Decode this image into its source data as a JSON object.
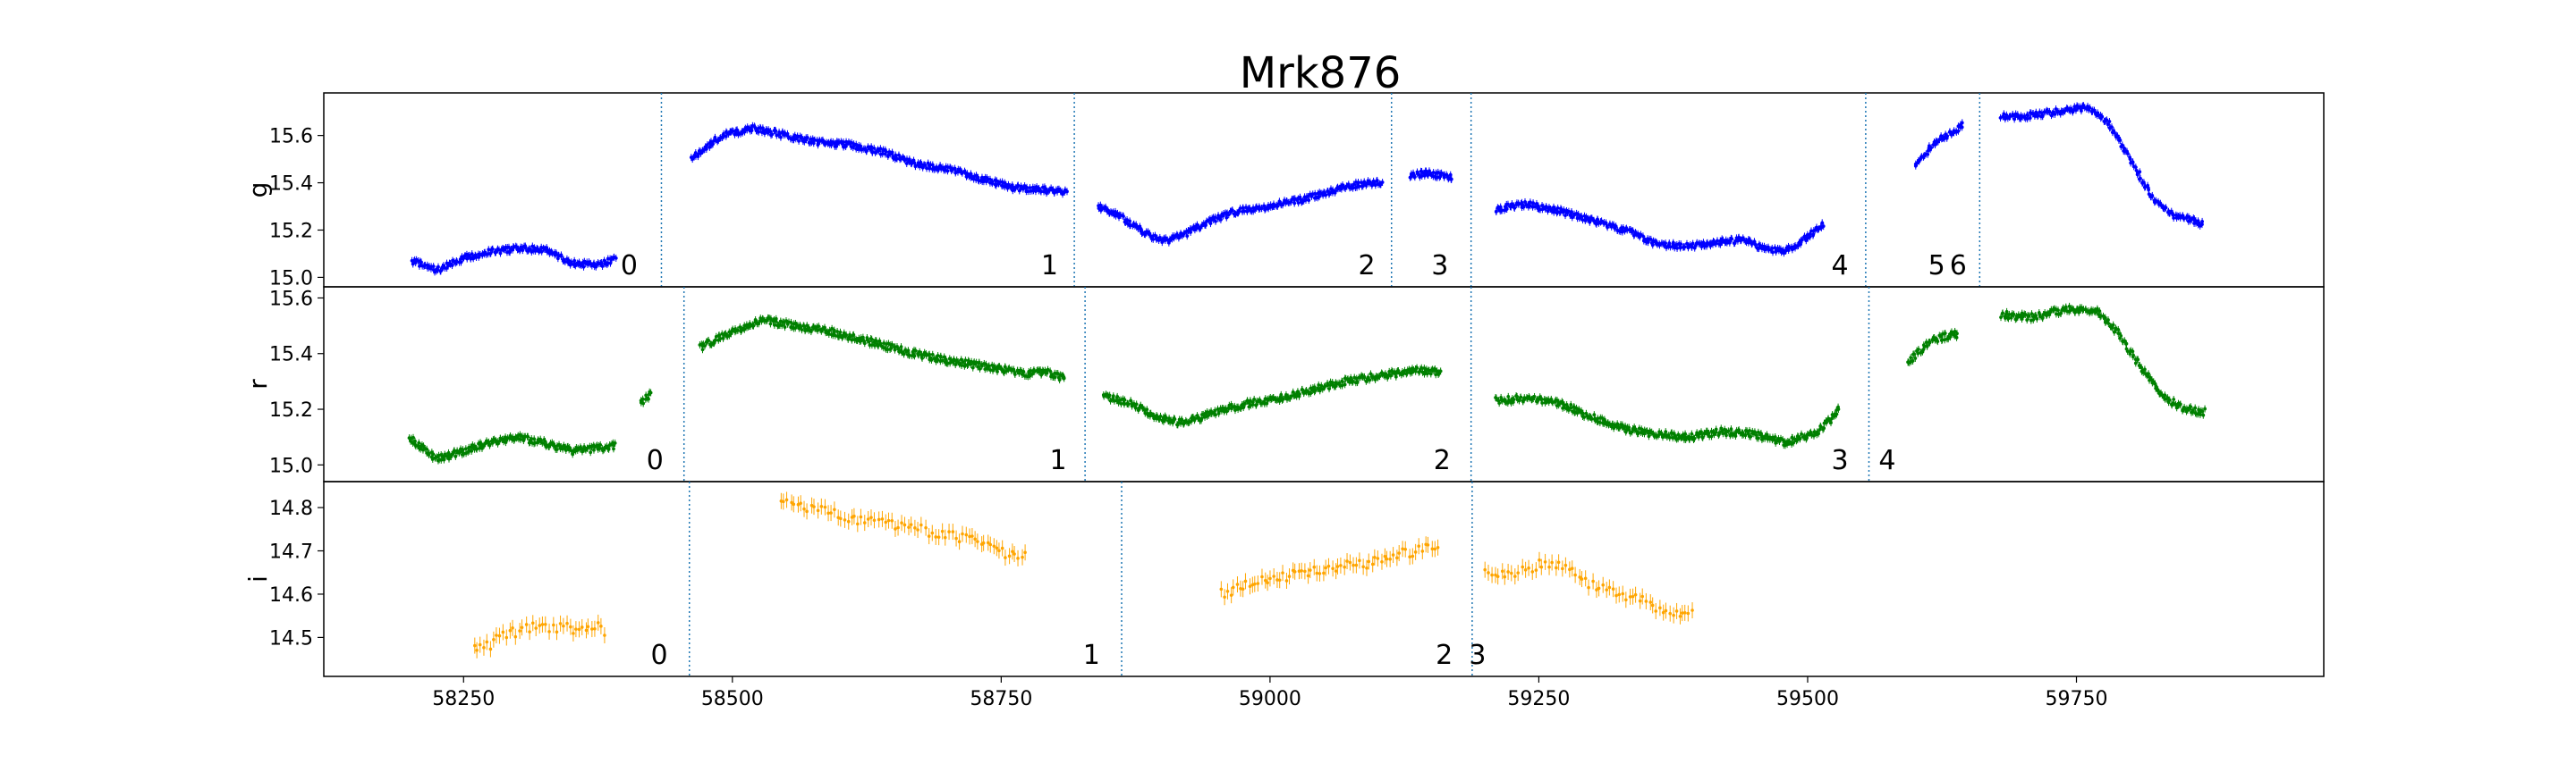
{
  "chart_data": {
    "type": "scatter",
    "title": "Mrk876",
    "xlim": [
      58120,
      59980
    ],
    "x_ticks": [
      58250,
      58500,
      58750,
      59000,
      59250,
      59500,
      59750
    ],
    "panels": [
      {
        "ylabel": "g",
        "color": "#0000ff",
        "ylim": [
          14.96,
          15.78
        ],
        "y_ticks": [
          "15.0",
          "15.2",
          "15.4",
          "15.6"
        ],
        "boundaries": [
          58434,
          58818,
          59113,
          59187,
          59554,
          59660
        ],
        "segment_labels": [
          {
            "label": "0",
            "x": 58404
          },
          {
            "label": "1",
            "x": 58795
          },
          {
            "label": "2",
            "x": 59090
          },
          {
            "label": "3",
            "x": 59158
          },
          {
            "label": "4",
            "x": 59530
          },
          {
            "label": "5",
            "x": 59620
          },
          {
            "label": "6",
            "x": 59640
          }
        ],
        "series": [
          {
            "x": [
              58202,
              58225,
              58250,
              58275,
              58300,
              58325,
              58350,
              58375,
              58392
            ],
            "y": [
              15.07,
              15.03,
              15.08,
              15.11,
              15.12,
              15.12,
              15.06,
              15.05,
              15.08
            ]
          },
          {
            "x": [
              58462,
              58490,
              58520,
              58550,
              58580,
              58610,
              58640,
              58670,
              58700,
              58730,
              58760,
              58790,
              58812
            ],
            "y": [
              15.5,
              15.6,
              15.63,
              15.6,
              15.57,
              15.56,
              15.53,
              15.48,
              15.46,
              15.42,
              15.38,
              15.37,
              15.36
            ]
          },
          {
            "x": [
              58840,
              58860,
              58880,
              58900,
              58920,
              58940,
              58970,
              59000,
              59030,
              59060,
              59090,
              59105
            ],
            "y": [
              15.3,
              15.26,
              15.2,
              15.15,
              15.18,
              15.23,
              15.28,
              15.3,
              15.33,
              15.37,
              15.4,
              15.4
            ]
          },
          {
            "x": [
              59130,
              59145,
              59160,
              59170
            ],
            "y": [
              15.43,
              15.44,
              15.43,
              15.42
            ]
          },
          {
            "x": [
              59210,
              59240,
              59270,
              59300,
              59330,
              59360,
              59390,
              59420,
              59440,
              59460,
              59480,
              59500,
              59515
            ],
            "y": [
              15.29,
              15.31,
              15.28,
              15.24,
              15.2,
              15.14,
              15.13,
              15.15,
              15.16,
              15.12,
              15.11,
              15.17,
              15.23
            ]
          },
          {
            "x": [
              59600,
              59620,
              59635,
              59645
            ],
            "y": [
              15.47,
              15.58,
              15.61,
              15.65
            ]
          },
          {
            "x": [
              59680,
              59700,
              59730,
              59760,
              59780,
              59800,
              59820,
              59840,
              59860,
              59868
            ],
            "y": [
              15.68,
              15.68,
              15.7,
              15.72,
              15.65,
              15.5,
              15.34,
              15.26,
              15.24,
              15.22
            ]
          }
        ]
      },
      {
        "ylabel": "r",
        "color": "#008000",
        "ylim": [
          14.94,
          15.64
        ],
        "y_ticks": [
          "15.0",
          "15.2",
          "15.4",
          "15.6"
        ],
        "boundaries": [
          58455,
          58828,
          59187,
          59557
        ],
        "segment_labels": [
          {
            "label": "0",
            "x": 58428
          },
          {
            "label": "1",
            "x": 58803
          },
          {
            "label": "2",
            "x": 59160
          },
          {
            "label": "3",
            "x": 59530
          },
          {
            "label": "4",
            "x": 59574
          }
        ],
        "series": [
          {
            "x": [
              58200,
              58225,
              58250,
              58275,
              58300,
              58325,
              58350,
              58375,
              58392
            ],
            "y": [
              15.1,
              15.02,
              15.05,
              15.08,
              15.1,
              15.08,
              15.05,
              15.06,
              15.07
            ]
          },
          {
            "x": [
              58415,
              58425
            ],
            "y": [
              15.22,
              15.26
            ]
          },
          {
            "x": [
              58470,
              58500,
              58530,
              58560,
              58590,
              58620,
              58650,
              58680,
              58710,
              58740,
              58770,
              58795,
              58810
            ],
            "y": [
              15.42,
              15.48,
              15.52,
              15.5,
              15.48,
              15.45,
              15.42,
              15.39,
              15.37,
              15.35,
              15.33,
              15.33,
              15.31
            ]
          },
          {
            "x": [
              58845,
              58870,
              58895,
              58920,
              58950,
              58980,
              59010,
              59040,
              59070,
              59100,
              59120,
              59140,
              59160
            ],
            "y": [
              15.25,
              15.22,
              15.17,
              15.15,
              15.19,
              15.22,
              15.24,
              15.27,
              15.3,
              15.32,
              15.33,
              15.34,
              15.33
            ]
          },
          {
            "x": [
              59210,
              59240,
              59270,
              59300,
              59330,
              59360,
              59390,
              59420,
              59450,
              59480,
              59510,
              59530
            ],
            "y": [
              15.23,
              15.24,
              15.22,
              15.17,
              15.13,
              15.11,
              15.1,
              15.12,
              15.11,
              15.08,
              15.12,
              15.2
            ]
          },
          {
            "x": [
              59593,
              59610,
              59625,
              59640
            ],
            "y": [
              15.37,
              15.43,
              15.46,
              15.47
            ]
          },
          {
            "x": [
              59680,
              59710,
              59740,
              59770,
              59790,
              59810,
              59830,
              59850,
              59870
            ],
            "y": [
              15.54,
              15.53,
              15.56,
              15.55,
              15.47,
              15.35,
              15.25,
              15.2,
              15.19
            ]
          }
        ]
      },
      {
        "ylabel": "i",
        "color": "#ffa500",
        "ylim": [
          14.41,
          14.86
        ],
        "y_ticks": [
          "14.5",
          "14.6",
          "14.7",
          "14.8"
        ],
        "boundaries": [
          58460,
          58862,
          59188
        ],
        "segment_labels": [
          {
            "label": "0",
            "x": 58432
          },
          {
            "label": "1",
            "x": 58834
          },
          {
            "label": "2",
            "x": 59162
          },
          {
            "label": "3",
            "x": 59193
          }
        ],
        "series": [
          {
            "x": [
              58260,
              58272,
              58284,
              58296,
              58308,
              58320,
              58333,
              58346,
              58358,
              58372,
              58385
            ],
            "y": [
              14.47,
              14.48,
              14.5,
              14.51,
              14.52,
              14.53,
              14.52,
              14.53,
              14.51,
              14.53,
              14.5
            ]
          },
          {
            "x": [
              58545,
              58570,
              58595,
              58620,
              58645,
              58670,
              58695,
              58720,
              58740,
              58760,
              58775
            ],
            "y": [
              14.81,
              14.8,
              14.79,
              14.77,
              14.76,
              14.75,
              14.74,
              14.73,
              14.71,
              14.69,
              14.69
            ]
          },
          {
            "x": [
              58955,
              58975,
              58995,
              59015,
              59035,
              59055,
              59075,
              59095,
              59115,
              59135,
              59160
            ],
            "y": [
              14.6,
              14.62,
              14.63,
              14.64,
              14.65,
              14.66,
              14.67,
              14.67,
              14.69,
              14.7,
              14.71
            ]
          },
          {
            "x": [
              59200,
              59225,
              59250,
              59275,
              59300,
              59325,
              59350,
              59375,
              59395
            ],
            "y": [
              14.65,
              14.64,
              14.67,
              14.66,
              14.62,
              14.6,
              14.58,
              14.56,
              14.55
            ]
          }
        ]
      }
    ]
  }
}
